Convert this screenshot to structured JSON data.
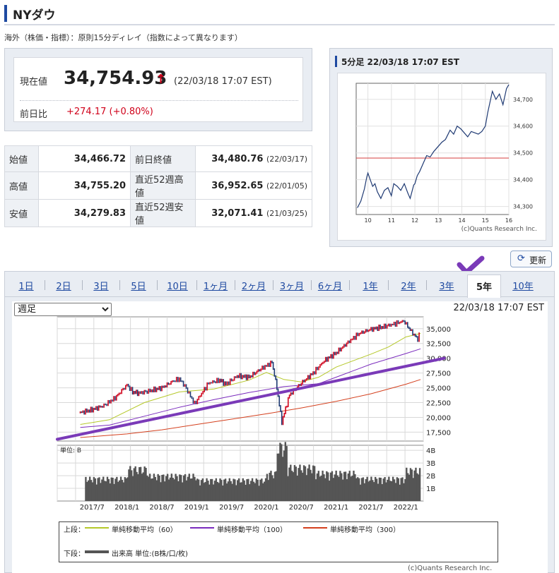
{
  "header": {
    "title": "NYダウ"
  },
  "notice": "海外（株価・指標）：原則15分ディレイ（指数によって異なります）",
  "quote": {
    "current_label": "現在値",
    "price": "34,754.93",
    "arrow": "↑",
    "time": "(22/03/18 17:07 EST)",
    "change_label": "前日比",
    "change": "+274.17 (+0.80%)"
  },
  "stats": [
    {
      "label": "始値",
      "value": "34,466.72",
      "label2": "前日終値",
      "value2": "34,480.76",
      "date2": "(22/03/17)"
    },
    {
      "label": "高値",
      "value": "34,755.20",
      "label2": "直近52週高値",
      "value2": "36,952.65",
      "date2": "(22/01/05)"
    },
    {
      "label": "安値",
      "value": "34,279.83",
      "label2": "直近52週安値",
      "value2": "32,071.41",
      "date2": "(21/03/25)"
    }
  ],
  "intraday": {
    "title": "5分足 22/03/18 17:07 EST",
    "copyright": "(c)Quants Research Inc.",
    "colors": {
      "line": "#1f3a73",
      "prev_close": "#d43c3c"
    },
    "chart_data": {
      "type": "line",
      "x_ticks": [
        "10",
        "11",
        "12",
        "13",
        "14",
        "15",
        "16"
      ],
      "y_ticks": [
        "34,300",
        "34,400",
        "34,500",
        "34,600",
        "34,700"
      ],
      "ylim": [
        34270,
        34760
      ],
      "xlim": [
        9.5,
        16.0
      ],
      "prev_close": 34480.76,
      "x": [
        9.55,
        9.7,
        9.85,
        9.95,
        10.0,
        10.1,
        10.2,
        10.3,
        10.4,
        10.55,
        10.7,
        10.85,
        11.0,
        11.1,
        11.25,
        11.4,
        11.55,
        11.7,
        11.8,
        11.95,
        12.0,
        12.1,
        12.2,
        12.35,
        12.5,
        12.65,
        12.8,
        13.0,
        13.15,
        13.3,
        13.5,
        13.65,
        13.8,
        13.95,
        14.1,
        14.25,
        14.4,
        14.55,
        14.7,
        14.85,
        15.0,
        15.1,
        15.2,
        15.3,
        15.45,
        15.6,
        15.75,
        15.9,
        16.0
      ],
      "y": [
        34295,
        34320,
        34365,
        34410,
        34425,
        34400,
        34375,
        34385,
        34355,
        34330,
        34360,
        34370,
        34340,
        34385,
        34375,
        34360,
        34385,
        34350,
        34330,
        34380,
        34385,
        34415,
        34430,
        34460,
        34490,
        34485,
        34505,
        34525,
        34540,
        34550,
        34585,
        34570,
        34600,
        34590,
        34575,
        34560,
        34580,
        34575,
        34570,
        34580,
        34600,
        34650,
        34690,
        34730,
        34700,
        34720,
        34680,
        34740,
        34755
      ]
    }
  },
  "update_button": {
    "label": "更新",
    "icon": "refresh-icon"
  },
  "tabs": [
    "1日",
    "2日",
    "3日",
    "5日",
    "10日",
    "1ヶ月",
    "2ヶ月",
    "3ヶ月",
    "6ヶ月",
    "1年",
    "2年",
    "3年",
    "5年",
    "10年"
  ],
  "active_tab": "5年",
  "select": {
    "value": "週足",
    "options": [
      "週足"
    ]
  },
  "chart_time": "22/03/18 17:07 EST",
  "main_chart": {
    "colors": {
      "up": "#d0021b",
      "down": "#1f3a73",
      "ma60": "#b5c829",
      "ma100": "#7a2bbd",
      "ma300": "#d4401e",
      "volume": "#555555",
      "annotation": "#7a3ab8"
    },
    "chart_data": [
      {
        "type": "line",
        "title": "",
        "x_ticks": [
          "2017/7",
          "2018/1",
          "2018/7",
          "2019/1",
          "2019/7",
          "2020/1",
          "2020/7",
          "2021/1",
          "2021/7",
          "2022/1"
        ],
        "y_ticks": [
          "17,500",
          "20,000",
          "22,500",
          "25,000",
          "27,500",
          "30,000",
          "32,500",
          "35,000"
        ],
        "ylim": [
          16000,
          37000
        ],
        "xlim": [
          2017.0,
          2022.25
        ],
        "series": [
          {
            "name": "",
            "x": [
              2017.33,
              2017.5,
              2017.67,
              2017.83,
              2018.0,
              2018.08,
              2018.17,
              2018.33,
              2018.5,
              2018.67,
              2018.75,
              2018.83,
              2018.97,
              2019.17,
              2019.33,
              2019.42,
              2019.58,
              2019.75,
              2019.92,
              2020.08,
              2020.15,
              2020.22,
              2020.33,
              2020.5,
              2020.67,
              2020.83,
              2021.0,
              2021.17,
              2021.33,
              2021.5,
              2021.67,
              2021.83,
              2021.97,
              2022.08,
              2022.17,
              2022.21
            ],
            "y": [
              20800,
              21300,
              22000,
              23300,
              25500,
              24300,
              24100,
              24500,
              25000,
              26200,
              26500,
              25300,
              22300,
              25800,
              26300,
              25600,
              27000,
              26800,
              28200,
              29300,
              25000,
              19200,
              23800,
              25800,
              27500,
              29600,
              30900,
              32700,
              34200,
              34900,
              35300,
              35800,
              36300,
              34500,
              33200,
              34755
            ]
          },
          {
            "name": "単純移動平均（60）",
            "x": [
              2017.33,
              2017.75,
              2018.25,
              2018.75,
              2019.25,
              2019.75,
              2020.0,
              2020.25,
              2020.5,
              2020.75,
              2021.0,
              2021.5,
              2021.75,
              2022.0,
              2022.21
            ],
            "y": [
              18800,
              19600,
              22500,
              24300,
              24800,
              26300,
              27600,
              26400,
              26000,
              26800,
              28500,
              30700,
              31900,
              33600,
              34200
            ]
          },
          {
            "name": "単純移動平均（100）",
            "x": [
              2017.33,
              2017.75,
              2018.25,
              2018.75,
              2019.25,
              2019.75,
              2020.25,
              2020.75,
              2021.0,
              2021.5,
              2022.0,
              2022.21
            ],
            "y": [
              18300,
              18700,
              20200,
              21700,
              23000,
              24200,
              25200,
              25700,
              26800,
              29000,
              30800,
              31600
            ]
          },
          {
            "name": "単純移動平均（300）",
            "x": [
              2017.33,
              2018.0,
              2018.5,
              2019.0,
              2019.5,
              2020.0,
              2020.5,
              2021.0,
              2021.5,
              2022.0,
              2022.21
            ],
            "y": [
              16600,
              17200,
              17900,
              18800,
              19700,
              20600,
              21600,
              22700,
              24000,
              25600,
              26400
            ]
          }
        ],
        "annotation_line": {
          "from": [
            2017.0,
            16300
          ],
          "to": [
            2022.55,
            30000
          ]
        }
      },
      {
        "type": "bar",
        "ylabel": "単位: B",
        "y_ticks": [
          "1B",
          "2B",
          "3B",
          "4B"
        ],
        "ylim": [
          0,
          4.4
        ],
        "levels": [
          {
            "from": 2017.4,
            "to": 2018.0,
            "v": 1.6
          },
          {
            "from": 2018.0,
            "to": 2018.3,
            "v": 2.3
          },
          {
            "from": 2018.3,
            "to": 2019.0,
            "v": 1.8
          },
          {
            "from": 2019.0,
            "to": 2020.0,
            "v": 1.5
          },
          {
            "from": 2020.0,
            "to": 2020.15,
            "v": 2.0
          },
          {
            "from": 2020.15,
            "to": 2020.3,
            "v": 3.9
          },
          {
            "from": 2020.3,
            "to": 2020.7,
            "v": 2.4
          },
          {
            "from": 2020.7,
            "to": 2021.3,
            "v": 2.0
          },
          {
            "from": 2021.3,
            "to": 2022.0,
            "v": 1.6
          },
          {
            "from": 2022.0,
            "to": 2022.21,
            "v": 2.2
          }
        ]
      }
    ],
    "legend": {
      "upper_label": "上段：",
      "ma60": "単純移動平均（60）",
      "ma100": "単純移動平均（100）",
      "ma300": "単純移動平均（300）",
      "lower_label": "下段：",
      "volume": "出来高 単位:(B株/口/枚)"
    },
    "copyright": "(c)Quants Research Inc."
  }
}
